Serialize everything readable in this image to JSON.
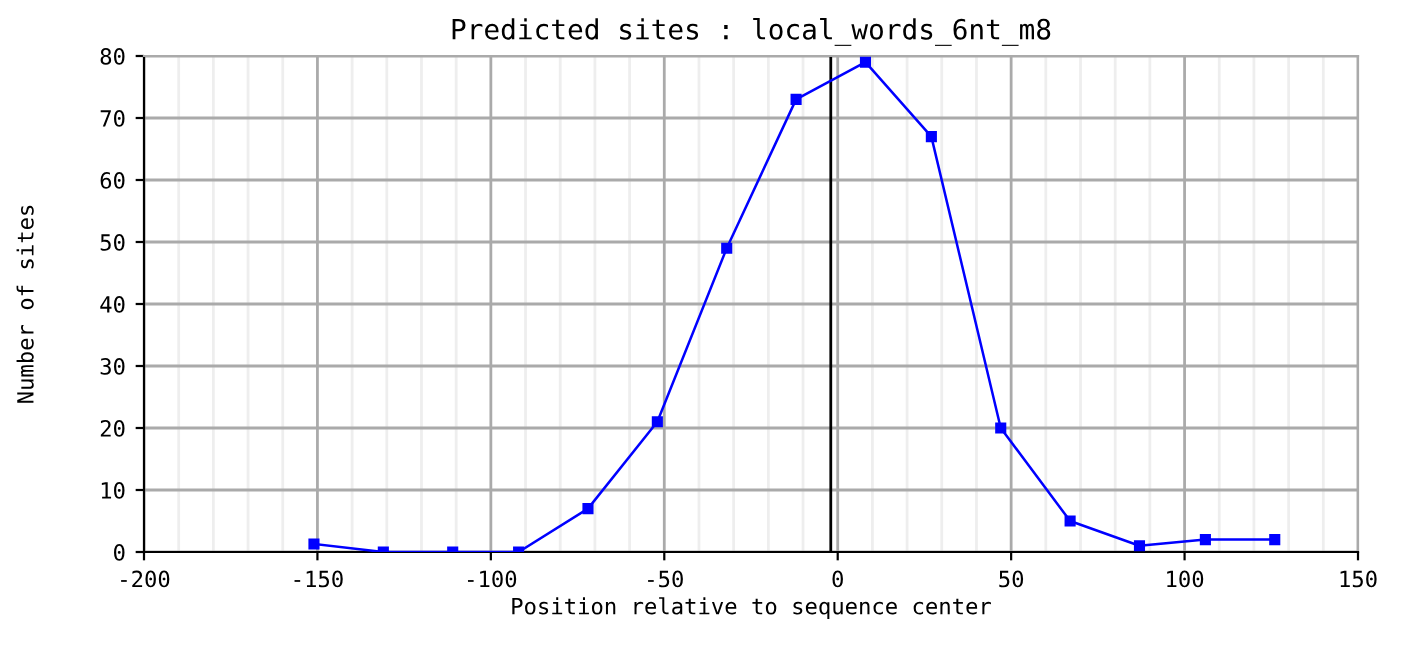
{
  "chart_data": {
    "type": "line",
    "title": "Predicted sites : local_words_6nt_m8",
    "xlabel": "Position relative to sequence center",
    "ylabel": "Number of sites",
    "x": [
      -151,
      -131,
      -111,
      -92,
      -72,
      -52,
      -32,
      -12,
      8,
      27,
      47,
      67,
      87,
      106,
      126
    ],
    "series": [
      {
        "color": "#0000ff",
        "values": [
          1.3,
          0,
          0,
          0,
          7,
          21,
          49,
          73,
          79,
          67,
          20,
          5,
          1,
          2,
          2
        ]
      }
    ],
    "xlim": [
      -200,
      150
    ],
    "xticks": [
      -200,
      -150,
      -100,
      -50,
      0,
      50,
      100,
      150
    ],
    "ylim": [
      0,
      80
    ],
    "yticks": [
      0,
      10,
      20,
      30,
      40,
      50,
      60,
      70,
      80
    ],
    "ref_lines": [
      {
        "axis": "x",
        "value": -2,
        "color": "#000000"
      }
    ],
    "grid": true,
    "marker": "square",
    "line_style": "solid",
    "legend": false
  }
}
